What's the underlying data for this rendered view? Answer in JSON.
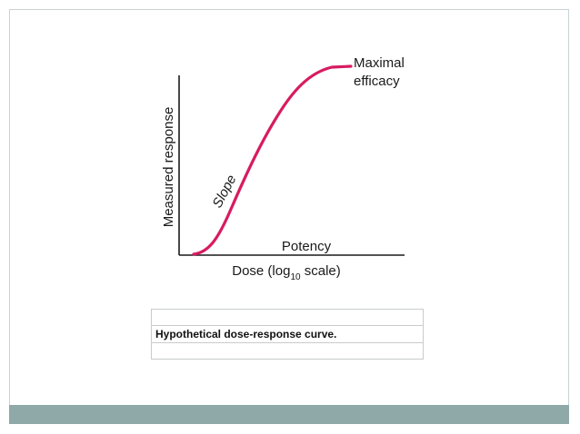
{
  "diagram": {
    "y_axis_label": "Measured response",
    "x_axis_label_prefix": "Dose (log",
    "x_axis_label_subscript": "10",
    "x_axis_label_suffix": " scale)",
    "annotations": {
      "slope": "Slope",
      "potency": "Potency",
      "maximal_line1": "Maximal",
      "maximal_line2": "efficacy"
    },
    "curve_color": "#d81b60",
    "axis_color": "#1a1a1a"
  },
  "caption": {
    "text": "Hypothetical dose-response curve."
  },
  "theme": {
    "footer_color": "#8fa8a8",
    "frame_color": "#c9d3d3"
  }
}
